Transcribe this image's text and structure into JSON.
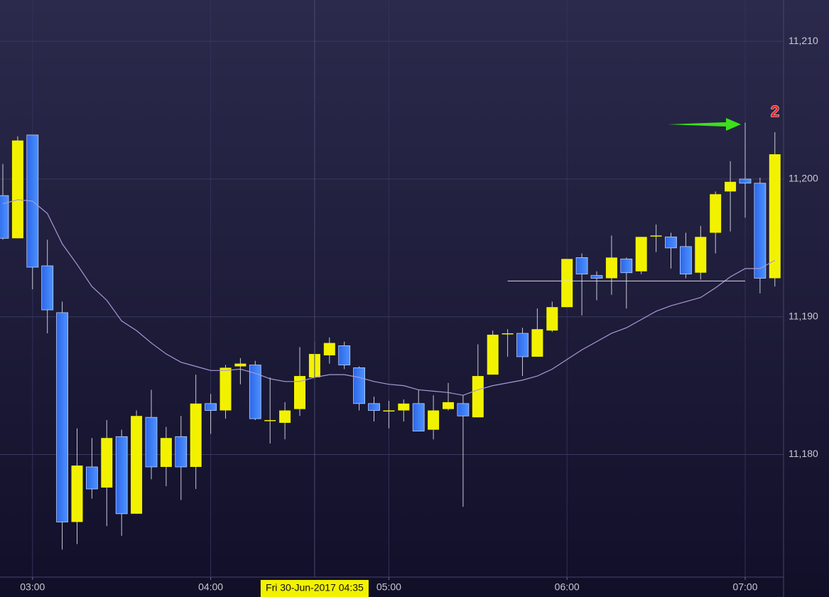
{
  "chart_data": {
    "type": "candlestick",
    "x": [
      "02:50",
      "02:55",
      "03:00",
      "03:05",
      "03:10",
      "03:15",
      "03:20",
      "03:25",
      "03:30",
      "03:35",
      "03:40",
      "03:45",
      "03:50",
      "03:55",
      "04:00",
      "04:05",
      "04:10",
      "04:15",
      "04:20",
      "04:25",
      "04:30",
      "04:35",
      "04:40",
      "04:45",
      "04:50",
      "04:55",
      "05:00",
      "05:05",
      "05:10",
      "05:15",
      "05:20",
      "05:25",
      "05:30",
      "05:35",
      "05:40",
      "05:45",
      "05:50",
      "05:55",
      "06:00",
      "06:05",
      "06:10",
      "06:15",
      "06:20",
      "06:25",
      "06:30",
      "06:35",
      "06:40",
      "06:45",
      "06:50",
      "06:55",
      "07:00",
      "07:05",
      "07:10"
    ],
    "open": [
      11198.8,
      11195.7,
      11203.2,
      11193.7,
      11190.3,
      11175.1,
      11179.1,
      11177.6,
      11181.3,
      11175.7,
      11182.7,
      11179.1,
      11181.3,
      11179.1,
      11183.7,
      11183.2,
      11186.4,
      11186.5,
      11182.5,
      11182.3,
      11183.3,
      11185.6,
      11187.2,
      11187.9,
      11186.3,
      11183.7,
      11183.2,
      11183.2,
      11183.7,
      11181.8,
      11183.3,
      11183.7,
      11182.7,
      11185.8,
      11188.8,
      11188.8,
      11187.1,
      11189.0,
      11190.7,
      11194.3,
      11193.0,
      11192.8,
      11194.2,
      11193.3,
      11195.9,
      11195.8,
      11195.1,
      11193.2,
      11196.1,
      11199.1,
      11200.0,
      11199.7,
      11192.8
    ],
    "high": [
      11201.1,
      11203.1,
      11203.2,
      11195.6,
      11191.1,
      11181.9,
      11181.2,
      11182.5,
      11181.8,
      11183.2,
      11184.7,
      11182.0,
      11182.8,
      11185.8,
      11184.4,
      11186.5,
      11187.0,
      11186.8,
      11185.6,
      11183.8,
      11187.8,
      11188.2,
      11188.5,
      11188.2,
      11186.4,
      11184.2,
      11183.9,
      11184.0,
      11184.7,
      11184.3,
      11185.2,
      11184.3,
      11188.0,
      11189.0,
      11189.1,
      11189.2,
      11190.6,
      11191.1,
      11194.2,
      11194.6,
      11193.3,
      11195.9,
      11194.3,
      11195.8,
      11196.7,
      11196.1,
      11196.1,
      11196.6,
      11199.1,
      11201.3,
      11204.1,
      11200.1,
      11203.4
    ],
    "low": [
      11195.6,
      11195.7,
      11192.0,
      11188.8,
      11173.1,
      11173.5,
      11176.8,
      11174.8,
      11174.1,
      11175.7,
      11178.2,
      11177.7,
      11176.7,
      11177.5,
      11181.5,
      11182.6,
      11185.1,
      11182.5,
      11180.8,
      11181.1,
      11182.8,
      11185.6,
      11186.6,
      11186.2,
      11183.2,
      11182.4,
      11181.9,
      11182.4,
      11181.7,
      11181.1,
      11183.2,
      11176.2,
      11182.7,
      11185.8,
      11187.1,
      11185.7,
      11187.1,
      11188.9,
      11190.7,
      11190.1,
      11191.2,
      11191.6,
      11190.6,
      11193.1,
      11194.7,
      11193.5,
      11192.8,
      11192.7,
      11194.6,
      11196.2,
      11197.2,
      11191.7,
      11192.2
    ],
    "close": [
      11195.7,
      11202.8,
      11193.6,
      11190.5,
      11175.1,
      11179.2,
      11177.5,
      11181.2,
      11175.7,
      11182.8,
      11179.1,
      11181.2,
      11179.1,
      11183.7,
      11183.2,
      11186.3,
      11186.6,
      11182.6,
      11182.5,
      11183.2,
      11185.7,
      11187.3,
      11188.1,
      11186.5,
      11183.7,
      11183.2,
      11183.2,
      11183.7,
      11181.7,
      11183.2,
      11183.8,
      11182.8,
      11185.7,
      11188.7,
      11188.8,
      11187.1,
      11189.1,
      11190.7,
      11194.2,
      11193.1,
      11192.8,
      11194.3,
      11193.2,
      11195.8,
      11195.9,
      11195.0,
      11193.1,
      11195.8,
      11198.9,
      11199.8,
      11199.7,
      11192.8,
      11201.8
    ],
    "moving_average": [
      11198.2,
      11198.5,
      11198.4,
      11197.5,
      11195.3,
      11193.8,
      11192.2,
      11191.2,
      11189.7,
      11189.0,
      11188.1,
      11187.3,
      11186.7,
      11186.4,
      11186.1,
      11186.1,
      11186.2,
      11185.9,
      11185.5,
      11185.3,
      11185.3,
      11185.6,
      11185.8,
      11185.8,
      11185.6,
      11185.3,
      11185.1,
      11185.0,
      11184.7,
      11184.6,
      11184.5,
      11184.3,
      11184.7,
      11185.0,
      11185.2,
      11185.4,
      11185.7,
      11186.2,
      11186.9,
      11187.6,
      11188.2,
      11188.8,
      11189.2,
      11189.8,
      11190.4,
      11190.8,
      11191.1,
      11191.4,
      11192.1,
      11192.9,
      11193.5,
      11193.5,
      11194.1
    ],
    "up_color": "#f2f200",
    "down_color": "#3a7cff",
    "ma_color": "#a59ad6",
    "ylim": [
      11171.1,
      11213.0
    ],
    "yticks": [
      {
        "value": 11180,
        "label": "11,180"
      },
      {
        "value": 11190,
        "label": "11,190"
      },
      {
        "value": 11200,
        "label": "11,200"
      },
      {
        "value": 11210,
        "label": "11,210"
      }
    ],
    "xticks": [
      "03:00",
      "04:00",
      "05:00",
      "06:00",
      "07:00"
    ],
    "grid": true,
    "hline": {
      "value": 11192.6,
      "from": "05:40",
      "to": "07:00"
    },
    "crosshair": {
      "x": "04:35",
      "label": "Fri 30-Jun-2017 04:35"
    },
    "annotation": "2"
  }
}
